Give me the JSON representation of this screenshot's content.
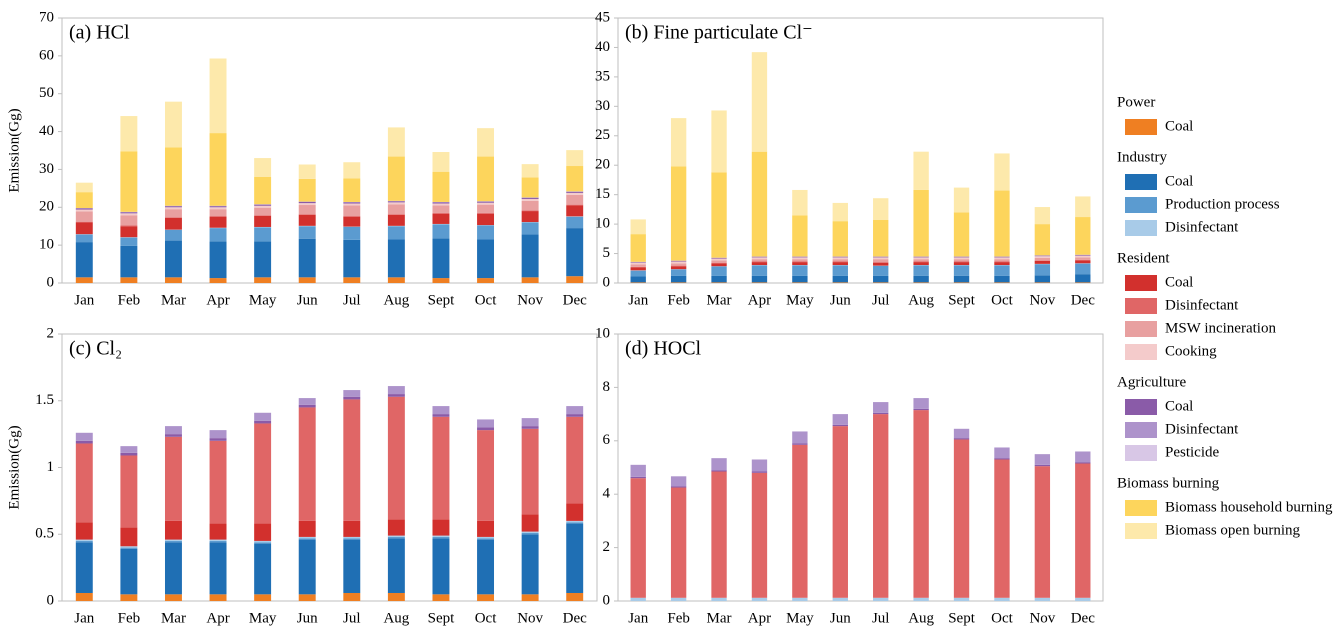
{
  "chart_data": [
    {
      "type": "bar",
      "stacked": true,
      "title": "(a) HCl",
      "ylabel": "Emission(Gg)",
      "categories": [
        "Jan",
        "Feb",
        "Mar",
        "Apr",
        "May",
        "Jun",
        "Jul",
        "Aug",
        "Sept",
        "Oct",
        "Nov",
        "Dec"
      ],
      "ylim": [
        0,
        70
      ],
      "yticks": [
        0,
        10,
        20,
        30,
        40,
        50,
        60,
        70
      ],
      "series": [
        {
          "values": [
            1.5,
            1.5,
            1.5,
            1.3,
            1.5,
            1.5,
            1.5,
            1.5,
            1.3,
            1.3,
            1.5,
            1.8
          ]
        },
        {
          "values": [
            9.3,
            8.3,
            9.7,
            9.7,
            9.5,
            10.2,
            9.9,
            10,
            10.5,
            10.2,
            11.3,
            12.7
          ]
        },
        {
          "values": [
            2,
            2.2,
            2.8,
            3.5,
            3.7,
            3.3,
            3.4,
            3.5,
            3.7,
            3.7,
            3.2,
            3
          ]
        },
        {
          "values": [
            0.1,
            0.1,
            0.1,
            0.1,
            0.1,
            0.1,
            0.1,
            0.1,
            0.1,
            0.1,
            0.1,
            0.1
          ]
        },
        {
          "values": [
            3.1,
            2.9,
            3.1,
            2.9,
            2.9,
            2.9,
            2.6,
            2.9,
            2.7,
            3,
            2.9,
            2.9
          ]
        },
        {
          "values": [
            0.2,
            0.2,
            0.2,
            0.2,
            0.2,
            0.2,
            0.2,
            0.2,
            0.2,
            0.2,
            0.2,
            0.2
          ]
        },
        {
          "values": [
            2.7,
            2.7,
            2.1,
            1.8,
            2,
            2.4,
            2.8,
            2.6,
            2,
            2.2,
            2.5,
            2.6
          ]
        },
        {
          "values": [
            0.5,
            0.5,
            0.5,
            0.5,
            0.5,
            0.5,
            0.5,
            0.5,
            0.5,
            0.5,
            0.5,
            0.5
          ]
        },
        {
          "values": [
            0.3,
            0.3,
            0.3,
            0.3,
            0.3,
            0.3,
            0.3,
            0.3,
            0.3,
            0.3,
            0.3,
            0.3
          ]
        },
        {
          "values": [
            0.1,
            0.1,
            0.1,
            0.1,
            0.1,
            0.1,
            0.1,
            0.1,
            0.1,
            0.1,
            0.1,
            0.1
          ]
        },
        {
          "values": [
            0,
            0,
            0,
            0,
            0,
            0,
            0,
            0,
            0,
            0,
            0,
            0
          ]
        },
        {
          "values": [
            4.2,
            16,
            15.4,
            19.2,
            7.2,
            6,
            6.2,
            11.7,
            8,
            11.8,
            5.3,
            6.7
          ]
        },
        {
          "values": [
            2.5,
            9.3,
            12.1,
            19.7,
            5,
            3.8,
            4.3,
            7.7,
            5.2,
            7.5,
            3.5,
            4.2
          ]
        }
      ]
    },
    {
      "type": "bar",
      "stacked": true,
      "title": "(b) Fine particulate Cl⁻",
      "categories": [
        "Jan",
        "Feb",
        "Mar",
        "Apr",
        "May",
        "Jun",
        "Jul",
        "Aug",
        "Sept",
        "Oct",
        "Nov",
        "Dec"
      ],
      "ylim": [
        0,
        45
      ],
      "yticks": [
        0,
        5,
        10,
        15,
        20,
        25,
        30,
        35,
        40,
        45
      ],
      "series": [
        {
          "values": [
            0.1,
            0.1,
            0.1,
            0.1,
            0.1,
            0.1,
            0.1,
            0.1,
            0.1,
            0.1,
            0.1,
            0.1
          ]
        },
        {
          "values": [
            1,
            1.1,
            1.1,
            1.1,
            1.1,
            1.1,
            1.1,
            1.1,
            1.1,
            1.1,
            1.2,
            1.4
          ]
        },
        {
          "values": [
            1,
            1.1,
            1.6,
            1.8,
            1.8,
            1.8,
            1.7,
            1.8,
            1.8,
            1.8,
            1.9,
            1.8
          ]
        },
        {
          "values": [
            0.05,
            0.05,
            0.05,
            0.05,
            0.05,
            0.05,
            0.05,
            0.05,
            0.05,
            0.05,
            0.05,
            0.05
          ]
        },
        {
          "values": [
            0.5,
            0.5,
            0.5,
            0.5,
            0.5,
            0.5,
            0.5,
            0.5,
            0.5,
            0.5,
            0.5,
            0.5
          ]
        },
        {
          "values": [
            0.1,
            0.1,
            0.1,
            0.1,
            0.1,
            0.1,
            0.1,
            0.1,
            0.1,
            0.1,
            0.1,
            0.1
          ]
        },
        {
          "values": [
            0.4,
            0.4,
            0.4,
            0.4,
            0.4,
            0.4,
            0.5,
            0.4,
            0.4,
            0.4,
            0.4,
            0.4
          ]
        },
        {
          "values": [
            0.3,
            0.3,
            0.3,
            0.3,
            0.3,
            0.3,
            0.3,
            0.3,
            0.3,
            0.3,
            0.3,
            0.3
          ]
        },
        {
          "values": [
            0.1,
            0.1,
            0.1,
            0.1,
            0.1,
            0.1,
            0.1,
            0.1,
            0.1,
            0.1,
            0.1,
            0.1
          ]
        },
        {
          "values": [
            0.05,
            0.05,
            0.05,
            0.05,
            0.05,
            0.05,
            0.05,
            0.05,
            0.05,
            0.05,
            0.05,
            0.05
          ]
        },
        {
          "values": [
            0,
            0,
            0,
            0,
            0,
            0,
            0,
            0,
            0,
            0,
            0,
            0
          ]
        },
        {
          "values": [
            4.7,
            16,
            14.5,
            17.8,
            7,
            6,
            6.2,
            11.3,
            7.5,
            11.2,
            5.3,
            6.4
          ]
        },
        {
          "values": [
            2.5,
            8.2,
            10.5,
            16.9,
            4.3,
            3.1,
            3.7,
            6.5,
            4.2,
            6.3,
            2.9,
            3.5
          ]
        }
      ]
    },
    {
      "type": "bar",
      "stacked": true,
      "title": "(c) Cl₂",
      "ylabel": "Emission(Gg)",
      "categories": [
        "Jan",
        "Feb",
        "Mar",
        "Apr",
        "May",
        "Jun",
        "Jul",
        "Aug",
        "Sept",
        "Oct",
        "Nov",
        "Dec"
      ],
      "ylim": [
        0,
        2
      ],
      "yticks": [
        0,
        0.5,
        1,
        1.5,
        2
      ],
      "series": [
        {
          "values": [
            0.06,
            0.05,
            0.05,
            0.05,
            0.05,
            0.05,
            0.06,
            0.06,
            0.05,
            0.05,
            0.05,
            0.06
          ]
        },
        {
          "values": [
            0.38,
            0.34,
            0.39,
            0.39,
            0.38,
            0.41,
            0.4,
            0.41,
            0.42,
            0.41,
            0.45,
            0.52
          ]
        },
        {
          "values": [
            0.01,
            0.01,
            0.01,
            0.01,
            0.01,
            0.01,
            0.01,
            0.01,
            0.01,
            0.01,
            0.01,
            0.01
          ]
        },
        {
          "values": [
            0.01,
            0.01,
            0.01,
            0.01,
            0.01,
            0.01,
            0.01,
            0.01,
            0.01,
            0.01,
            0.01,
            0.01
          ]
        },
        {
          "values": [
            0.13,
            0.14,
            0.14,
            0.12,
            0.13,
            0.12,
            0.12,
            0.12,
            0.12,
            0.12,
            0.13,
            0.13
          ]
        },
        {
          "values": [
            0.59,
            0.54,
            0.63,
            0.62,
            0.75,
            0.85,
            0.91,
            0.92,
            0.77,
            0.68,
            0.64,
            0.65
          ]
        },
        {
          "values": [
            0,
            0,
            0,
            0,
            0,
            0,
            0,
            0,
            0,
            0,
            0,
            0
          ]
        },
        {
          "values": [
            0,
            0,
            0,
            0,
            0,
            0,
            0,
            0,
            0,
            0,
            0,
            0
          ]
        },
        {
          "values": [
            0.02,
            0.02,
            0.02,
            0.02,
            0.02,
            0.02,
            0.02,
            0.02,
            0.02,
            0.02,
            0.02,
            0.02
          ]
        },
        {
          "values": [
            0.06,
            0.05,
            0.06,
            0.06,
            0.06,
            0.05,
            0.05,
            0.06,
            0.06,
            0.06,
            0.06,
            0.06
          ]
        },
        {
          "values": [
            0,
            0,
            0,
            0,
            0,
            0,
            0,
            0,
            0,
            0,
            0,
            0
          ]
        },
        {
          "values": [
            0,
            0,
            0,
            0,
            0,
            0,
            0,
            0,
            0,
            0,
            0,
            0
          ]
        },
        {
          "values": [
            0,
            0,
            0,
            0,
            0,
            0,
            0,
            0,
            0,
            0,
            0,
            0
          ]
        }
      ]
    },
    {
      "type": "bar",
      "stacked": true,
      "title": "(d) HOCl",
      "categories": [
        "Jan",
        "Feb",
        "Mar",
        "Apr",
        "May",
        "Jun",
        "Jul",
        "Aug",
        "Sept",
        "Oct",
        "Nov",
        "Dec"
      ],
      "ylim": [
        0,
        10
      ],
      "yticks": [
        0,
        2,
        4,
        6,
        8,
        10
      ],
      "series": [
        {
          "values": [
            0,
            0,
            0,
            0,
            0,
            0,
            0,
            0,
            0,
            0,
            0,
            0
          ]
        },
        {
          "values": [
            0,
            0,
            0,
            0,
            0,
            0,
            0,
            0,
            0,
            0,
            0,
            0
          ]
        },
        {
          "values": [
            0,
            0,
            0,
            0,
            0,
            0,
            0,
            0,
            0,
            0,
            0,
            0
          ]
        },
        {
          "values": [
            0.12,
            0.12,
            0.12,
            0.12,
            0.12,
            0.12,
            0.12,
            0.12,
            0.12,
            0.12,
            0.12,
            0.12
          ]
        },
        {
          "values": [
            0,
            0,
            0,
            0,
            0,
            0,
            0,
            0,
            0,
            0,
            0,
            0
          ]
        },
        {
          "values": [
            4.48,
            4.13,
            4.73,
            4.68,
            5.73,
            6.43,
            6.88,
            7.03,
            5.93,
            5.18,
            4.93,
            5.03
          ]
        },
        {
          "values": [
            0,
            0,
            0,
            0,
            0,
            0,
            0,
            0,
            0,
            0,
            0,
            0
          ]
        },
        {
          "values": [
            0,
            0,
            0,
            0,
            0,
            0,
            0,
            0,
            0,
            0,
            0,
            0
          ]
        },
        {
          "values": [
            0.05,
            0.05,
            0.05,
            0.05,
            0.05,
            0.05,
            0.05,
            0.05,
            0.05,
            0.05,
            0.05,
            0.05
          ]
        },
        {
          "values": [
            0.45,
            0.37,
            0.45,
            0.45,
            0.45,
            0.4,
            0.4,
            0.4,
            0.35,
            0.4,
            0.4,
            0.4
          ]
        },
        {
          "values": [
            0,
            0,
            0,
            0,
            0,
            0,
            0,
            0,
            0,
            0,
            0,
            0
          ]
        },
        {
          "values": [
            0,
            0,
            0,
            0,
            0,
            0,
            0,
            0,
            0,
            0,
            0,
            0
          ]
        },
        {
          "values": [
            0,
            0,
            0,
            0,
            0,
            0,
            0,
            0,
            0,
            0,
            0,
            0
          ]
        }
      ]
    }
  ],
  "legend": [
    {
      "title": "Power",
      "entries": [
        {
          "name": "Coal",
          "color": "#ef7f22"
        }
      ]
    },
    {
      "title": "Industry",
      "entries": [
        {
          "name": "Coal",
          "color": "#1f6fb4"
        },
        {
          "name": "Production process",
          "color": "#5b9bd0"
        },
        {
          "name": "Disinfectant",
          "color": "#a8cbe8"
        }
      ]
    },
    {
      "title": "Resident",
      "entries": [
        {
          "name": "Coal",
          "color": "#d2302d"
        },
        {
          "name": "Disinfectant",
          "color": "#e06666"
        },
        {
          "name": "MSW incineration",
          "color": "#e8a0a0"
        },
        {
          "name": "Cooking",
          "color": "#f4cbcb"
        }
      ]
    },
    {
      "title": "Agriculture",
      "entries": [
        {
          "name": "Coal",
          "color": "#8a5ba8"
        },
        {
          "name": "Disinfectant",
          "color": "#ad93cb"
        },
        {
          "name": "Pesticide",
          "color": "#d8c7e6"
        }
      ]
    },
    {
      "title": "Biomass burning",
      "entries": [
        {
          "name": "Biomass household burning",
          "color": "#fdd55c"
        },
        {
          "name": "Biomass open burning",
          "color": "#fde9ab"
        }
      ]
    }
  ]
}
